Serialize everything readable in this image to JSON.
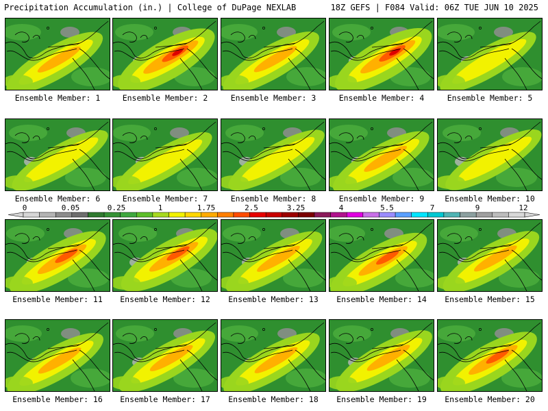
{
  "header": {
    "left": "Precipitation Accumulation (in.) | College of DuPage NEXLAB",
    "right": "18Z GEFS | F084 Valid: 06Z TUE JUN 10 2025"
  },
  "panel_label_prefix": "Ensemble Member: ",
  "members": [
    {
      "id": "1",
      "intensity": 2
    },
    {
      "id": "2",
      "intensity": 4
    },
    {
      "id": "3",
      "intensity": 2
    },
    {
      "id": "4",
      "intensity": 4
    },
    {
      "id": "5",
      "intensity": 1
    },
    {
      "id": "6",
      "intensity": 1
    },
    {
      "id": "7",
      "intensity": 1
    },
    {
      "id": "8",
      "intensity": 1
    },
    {
      "id": "9",
      "intensity": 2
    },
    {
      "id": "10",
      "intensity": 1
    },
    {
      "id": "11",
      "intensity": 3
    },
    {
      "id": "12",
      "intensity": 3
    },
    {
      "id": "13",
      "intensity": 2
    },
    {
      "id": "14",
      "intensity": 3
    },
    {
      "id": "15",
      "intensity": 2
    },
    {
      "id": "16",
      "intensity": 2
    },
    {
      "id": "17",
      "intensity": 2
    },
    {
      "id": "18",
      "intensity": 2
    },
    {
      "id": "19",
      "intensity": 2
    },
    {
      "id": "20",
      "intensity": 3
    }
  ],
  "legend": {
    "tick_labels": [
      "0",
      "0.05",
      "0.25",
      "1",
      "1.75",
      "2.5",
      "3.25",
      "4",
      "5.5",
      "7",
      "9",
      "12"
    ],
    "colors": [
      "#d6d6d6",
      "#b4b4b4",
      "#8c8c8c",
      "#6e6e6e",
      "#2f7a2f",
      "#349234",
      "#3fa83f",
      "#5dbf2a",
      "#a7d920",
      "#f2f200",
      "#ffd700",
      "#ffab00",
      "#ff7f00",
      "#ff4c00",
      "#e60000",
      "#c80000",
      "#9c0000",
      "#7a0000",
      "#8b1a5a",
      "#b0128c",
      "#e000e0",
      "#c870e8",
      "#9a8cff",
      "#5aa0ff",
      "#00e5ff",
      "#00c8d2",
      "#50b4b4",
      "#8ca0a0",
      "#a0a0a0",
      "#bdbdbd",
      "#d8d8d8"
    ]
  },
  "precip_colors": {
    "base": "#2f8f2f",
    "light_green": "#46a83a",
    "lime": "#9ad61e",
    "yellow": "#f2f200",
    "orange": "#ffb000",
    "red_orange": "#ff5a00",
    "red": "#dd0000",
    "gray": "#8e8e8e",
    "light_gray": "#b9b9b9"
  }
}
